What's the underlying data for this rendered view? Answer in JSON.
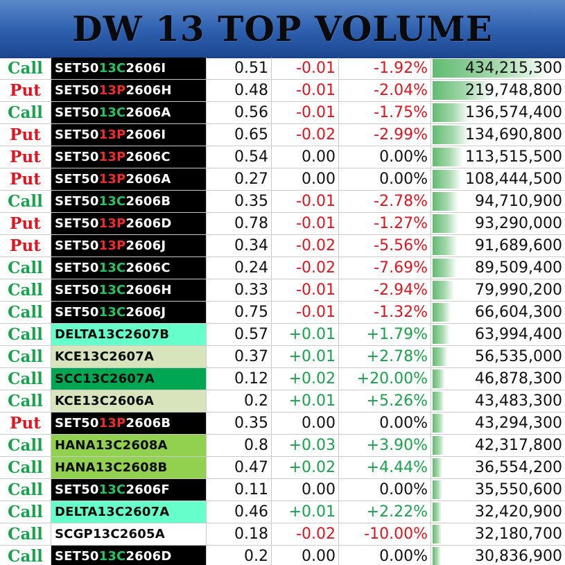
{
  "title": "DW 13 TOP VOLUME",
  "colors": {
    "call": "#18a34a",
    "put": "#e0141e",
    "negative": "#e0141e",
    "positive": "#18a34a",
    "neutral": "#111111",
    "header_blue": "#2f62b1"
  },
  "rows": [
    {
      "type": "Call",
      "sym_pre": "SET50",
      "sym_mid": "13C",
      "sym_post": "2606I",
      "sym_bg": "#000000",
      "sym_fg": "#ffffff",
      "mid_color": "#22c55e",
      "price": "0.51",
      "change": "-0.01",
      "pct": "-1.92%",
      "volume": "434,215,300",
      "volume_value": 434215300
    },
    {
      "type": "Put",
      "sym_pre": "SET50",
      "sym_mid": "13P",
      "sym_post": "2606H",
      "sym_bg": "#000000",
      "sym_fg": "#ffffff",
      "mid_color": "#ef2b2b",
      "price": "0.48",
      "change": "-0.01",
      "pct": "-2.04%",
      "volume": "219,748,800",
      "volume_value": 219748800
    },
    {
      "type": "Call",
      "sym_pre": "SET50",
      "sym_mid": "13C",
      "sym_post": "2606A",
      "sym_bg": "#000000",
      "sym_fg": "#ffffff",
      "mid_color": "#22c55e",
      "price": "0.56",
      "change": "-0.01",
      "pct": "-1.75%",
      "volume": "136,574,400",
      "volume_value": 136574400
    },
    {
      "type": "Put",
      "sym_pre": "SET50",
      "sym_mid": "13P",
      "sym_post": "2606I",
      "sym_bg": "#000000",
      "sym_fg": "#ffffff",
      "mid_color": "#ef2b2b",
      "price": "0.65",
      "change": "-0.02",
      "pct": "-2.99%",
      "volume": "134,690,800",
      "volume_value": 134690800
    },
    {
      "type": "Put",
      "sym_pre": "SET50",
      "sym_mid": "13P",
      "sym_post": "2606C",
      "sym_bg": "#000000",
      "sym_fg": "#ffffff",
      "mid_color": "#ef2b2b",
      "price": "0.54",
      "change": "0.00",
      "pct": "0.00%",
      "volume": "113,515,500",
      "volume_value": 113515500
    },
    {
      "type": "Put",
      "sym_pre": "SET50",
      "sym_mid": "13P",
      "sym_post": "2606A",
      "sym_bg": "#000000",
      "sym_fg": "#ffffff",
      "mid_color": "#ef2b2b",
      "price": "0.27",
      "change": "0.00",
      "pct": "0.00%",
      "volume": "108,444,500",
      "volume_value": 108444500
    },
    {
      "type": "Call",
      "sym_pre": "SET50",
      "sym_mid": "13C",
      "sym_post": "2606B",
      "sym_bg": "#000000",
      "sym_fg": "#ffffff",
      "mid_color": "#22c55e",
      "price": "0.35",
      "change": "-0.01",
      "pct": "-2.78%",
      "volume": "94,710,900",
      "volume_value": 94710900
    },
    {
      "type": "Put",
      "sym_pre": "SET50",
      "sym_mid": "13P",
      "sym_post": "2606D",
      "sym_bg": "#000000",
      "sym_fg": "#ffffff",
      "mid_color": "#ef2b2b",
      "price": "0.78",
      "change": "-0.01",
      "pct": "-1.27%",
      "volume": "93,290,000",
      "volume_value": 93290000
    },
    {
      "type": "Put",
      "sym_pre": "SET50",
      "sym_mid": "13P",
      "sym_post": "2606J",
      "sym_bg": "#000000",
      "sym_fg": "#ffffff",
      "mid_color": "#ef2b2b",
      "price": "0.34",
      "change": "-0.02",
      "pct": "-5.56%",
      "volume": "91,689,600",
      "volume_value": 91689600
    },
    {
      "type": "Call",
      "sym_pre": "SET50",
      "sym_mid": "13C",
      "sym_post": "2606C",
      "sym_bg": "#000000",
      "sym_fg": "#ffffff",
      "mid_color": "#22c55e",
      "price": "0.24",
      "change": "-0.02",
      "pct": "-7.69%",
      "volume": "89,509,400",
      "volume_value": 89509400
    },
    {
      "type": "Call",
      "sym_pre": "SET50",
      "sym_mid": "13C",
      "sym_post": "2606H",
      "sym_bg": "#000000",
      "sym_fg": "#ffffff",
      "mid_color": "#22c55e",
      "price": "0.33",
      "change": "-0.01",
      "pct": "-2.94%",
      "volume": "79,990,200",
      "volume_value": 79990200
    },
    {
      "type": "Call",
      "sym_pre": "SET50",
      "sym_mid": "13C",
      "sym_post": "2606J",
      "sym_bg": "#000000",
      "sym_fg": "#ffffff",
      "mid_color": "#22c55e",
      "price": "0.75",
      "change": "-0.01",
      "pct": "-1.32%",
      "volume": "66,604,300",
      "volume_value": 66604300
    },
    {
      "type": "Call",
      "sym_pre": "DELTA13C2607B",
      "sym_mid": "",
      "sym_post": "",
      "sym_bg": "#66ffcc",
      "sym_fg": "#0a0a0a",
      "mid_color": "#0a0a0a",
      "price": "0.57",
      "change": "+0.01",
      "pct": "+1.79%",
      "volume": "63,994,400",
      "volume_value": 63994400
    },
    {
      "type": "Call",
      "sym_pre": "KCE13C2607A",
      "sym_mid": "",
      "sym_post": "",
      "sym_bg": "#d8e4bc",
      "sym_fg": "#0a0a0a",
      "mid_color": "#0a0a0a",
      "price": "0.37",
      "change": "+0.01",
      "pct": "+2.78%",
      "volume": "56,535,000",
      "volume_value": 56535000
    },
    {
      "type": "Call",
      "sym_pre": "SCC13C2607A",
      "sym_mid": "",
      "sym_post": "",
      "sym_bg": "#00a651",
      "sym_fg": "#0a0a0a",
      "mid_color": "#0a0a0a",
      "price": "0.12",
      "change": "+0.02",
      "pct": "+20.00%",
      "volume": "46,878,300",
      "volume_value": 46878300
    },
    {
      "type": "Call",
      "sym_pre": "KCE13C2606A",
      "sym_mid": "",
      "sym_post": "",
      "sym_bg": "#d8e4bc",
      "sym_fg": "#0a0a0a",
      "mid_color": "#0a0a0a",
      "price": "0.2",
      "change": "+0.01",
      "pct": "+5.26%",
      "volume": "43,483,300",
      "volume_value": 43483300
    },
    {
      "type": "Put",
      "sym_pre": "SET50",
      "sym_mid": "13P",
      "sym_post": "2606B",
      "sym_bg": "#000000",
      "sym_fg": "#ffffff",
      "mid_color": "#ef2b2b",
      "price": "0.35",
      "change": "0.00",
      "pct": "0.00%",
      "volume": "43,294,300",
      "volume_value": 43294300
    },
    {
      "type": "Call",
      "sym_pre": "HANA13C2608A",
      "sym_mid": "",
      "sym_post": "",
      "sym_bg": "#92d050",
      "sym_fg": "#0a0a0a",
      "mid_color": "#0a0a0a",
      "price": "0.8",
      "change": "+0.03",
      "pct": "+3.90%",
      "volume": "42,317,800",
      "volume_value": 42317800
    },
    {
      "type": "Call",
      "sym_pre": "HANA13C2608B",
      "sym_mid": "",
      "sym_post": "",
      "sym_bg": "#92d050",
      "sym_fg": "#0a0a0a",
      "mid_color": "#0a0a0a",
      "price": "0.47",
      "change": "+0.02",
      "pct": "+4.44%",
      "volume": "36,554,200",
      "volume_value": 36554200
    },
    {
      "type": "Call",
      "sym_pre": "SET50",
      "sym_mid": "13C",
      "sym_post": "2606F",
      "sym_bg": "#000000",
      "sym_fg": "#ffffff",
      "mid_color": "#22c55e",
      "price": "0.11",
      "change": "0.00",
      "pct": "0.00%",
      "volume": "35,550,600",
      "volume_value": 35550600
    },
    {
      "type": "Call",
      "sym_pre": "DELTA13C2607A",
      "sym_mid": "",
      "sym_post": "",
      "sym_bg": "#66ffcc",
      "sym_fg": "#0a0a0a",
      "mid_color": "#0a0a0a",
      "price": "0.46",
      "change": "+0.01",
      "pct": "+2.22%",
      "volume": "32,420,900",
      "volume_value": 32420900
    },
    {
      "type": "Call",
      "sym_pre": "SCGP13C2605A",
      "sym_mid": "",
      "sym_post": "",
      "sym_bg": "#ffffff",
      "sym_fg": "#0a0a0a",
      "mid_color": "#0a0a0a",
      "price": "0.18",
      "change": "-0.02",
      "pct": "-10.00%",
      "volume": "32,180,700",
      "volume_value": 32180700
    },
    {
      "type": "Call",
      "sym_pre": "SET50",
      "sym_mid": "13C",
      "sym_post": "2606D",
      "sym_bg": "#000000",
      "sym_fg": "#ffffff",
      "mid_color": "#22c55e",
      "price": "0.2",
      "change": "0.00",
      "pct": "0.00%",
      "volume": "30,836,900",
      "volume_value": 30836900
    }
  ]
}
